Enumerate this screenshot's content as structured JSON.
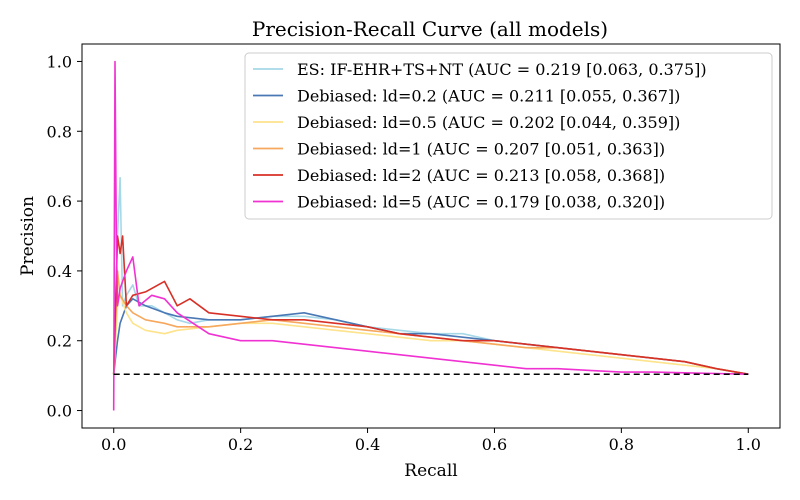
{
  "chart_data": {
    "type": "line",
    "title": "Precision-Recall Curve (all models)",
    "xlabel": "Recall",
    "ylabel": "Precision",
    "xlim": [
      -0.05,
      1.05
    ],
    "ylim": [
      -0.05,
      1.05
    ],
    "xticks": [
      "0.0",
      "0.2",
      "0.4",
      "0.6",
      "0.8",
      "1.0"
    ],
    "yticks": [
      "0.0",
      "0.2",
      "0.4",
      "0.6",
      "0.8",
      "1.0"
    ],
    "grid": false,
    "legend_position": "top-right",
    "baseline": {
      "y": 0.104,
      "style": "dashed",
      "color": "#000000"
    },
    "series": [
      {
        "name": "ES: IF-EHR+TS+NT (AUC = 0.219 [0.063, 0.375])",
        "color": "#a6d8e8",
        "x": [
          0.0,
          0.006,
          0.01,
          0.014,
          0.02,
          0.03,
          0.04,
          0.06,
          0.08,
          0.1,
          0.12,
          0.15,
          0.2,
          0.25,
          0.3,
          0.35,
          0.4,
          0.45,
          0.5,
          0.55,
          0.6,
          0.65,
          0.7,
          0.75,
          0.8,
          0.85,
          0.9,
          0.95,
          1.0
        ],
        "y": [
          0.104,
          0.5,
          0.667,
          0.3,
          0.33,
          0.36,
          0.3,
          0.3,
          0.28,
          0.26,
          0.25,
          0.26,
          0.26,
          0.27,
          0.27,
          0.26,
          0.24,
          0.23,
          0.22,
          0.22,
          0.2,
          0.19,
          0.18,
          0.17,
          0.16,
          0.15,
          0.14,
          0.12,
          0.104
        ]
      },
      {
        "name": "Debiased: ld=0.2 (AUC = 0.211 [0.055, 0.367])",
        "color": "#4a78b5",
        "x": [
          0.0,
          0.006,
          0.01,
          0.02,
          0.03,
          0.05,
          0.08,
          0.1,
          0.15,
          0.2,
          0.25,
          0.3,
          0.35,
          0.4,
          0.45,
          0.5,
          0.55,
          0.6,
          0.65,
          0.7,
          0.75,
          0.8,
          0.85,
          0.9,
          0.95,
          1.0
        ],
        "y": [
          0.104,
          0.2,
          0.25,
          0.3,
          0.32,
          0.3,
          0.28,
          0.27,
          0.26,
          0.26,
          0.27,
          0.28,
          0.26,
          0.24,
          0.22,
          0.22,
          0.21,
          0.2,
          0.19,
          0.18,
          0.17,
          0.16,
          0.15,
          0.14,
          0.12,
          0.104
        ]
      },
      {
        "name": "Debiased: ld=0.5 (AUC = 0.202 [0.044, 0.359])",
        "color": "#fde38b",
        "x": [
          0.0,
          0.006,
          0.01,
          0.02,
          0.03,
          0.05,
          0.08,
          0.1,
          0.15,
          0.2,
          0.25,
          0.3,
          0.35,
          0.4,
          0.45,
          0.5,
          0.55,
          0.6,
          0.65,
          0.7,
          0.75,
          0.8,
          0.85,
          0.9,
          0.95,
          1.0
        ],
        "y": [
          0.104,
          0.3,
          0.33,
          0.28,
          0.25,
          0.23,
          0.22,
          0.23,
          0.24,
          0.25,
          0.25,
          0.24,
          0.23,
          0.22,
          0.21,
          0.2,
          0.2,
          0.19,
          0.18,
          0.17,
          0.16,
          0.15,
          0.14,
          0.13,
          0.12,
          0.104
        ]
      },
      {
        "name": "Debiased: ld=1 (AUC = 0.207 [0.051, 0.363])",
        "color": "#f6a85e",
        "x": [
          0.0,
          0.006,
          0.01,
          0.02,
          0.03,
          0.05,
          0.08,
          0.1,
          0.15,
          0.2,
          0.25,
          0.3,
          0.35,
          0.4,
          0.45,
          0.5,
          0.55,
          0.6,
          0.65,
          0.7,
          0.75,
          0.8,
          0.85,
          0.9,
          0.95,
          1.0
        ],
        "y": [
          0.104,
          0.4,
          0.33,
          0.3,
          0.28,
          0.26,
          0.25,
          0.24,
          0.24,
          0.25,
          0.26,
          0.25,
          0.24,
          0.23,
          0.22,
          0.21,
          0.2,
          0.19,
          0.18,
          0.18,
          0.17,
          0.16,
          0.15,
          0.14,
          0.12,
          0.104
        ]
      },
      {
        "name": "Debiased: ld=2 (AUC = 0.213 [0.058, 0.368])",
        "color": "#d73027",
        "x": [
          0.0,
          0.006,
          0.01,
          0.014,
          0.02,
          0.03,
          0.05,
          0.07,
          0.08,
          0.1,
          0.12,
          0.15,
          0.2,
          0.25,
          0.3,
          0.35,
          0.4,
          0.45,
          0.5,
          0.55,
          0.6,
          0.65,
          0.7,
          0.75,
          0.8,
          0.85,
          0.9,
          0.95,
          1.0
        ],
        "y": [
          0.104,
          0.5,
          0.45,
          0.5,
          0.3,
          0.33,
          0.34,
          0.36,
          0.37,
          0.3,
          0.32,
          0.28,
          0.27,
          0.26,
          0.26,
          0.25,
          0.24,
          0.22,
          0.21,
          0.2,
          0.2,
          0.19,
          0.18,
          0.17,
          0.16,
          0.15,
          0.14,
          0.12,
          0.104
        ]
      },
      {
        "name": "Debiased: ld=5 (AUC = 0.179 [0.038, 0.320])",
        "color": "#f032d2",
        "x": [
          0.0,
          0.002,
          0.004,
          0.006,
          0.01,
          0.02,
          0.03,
          0.04,
          0.06,
          0.08,
          0.1,
          0.15,
          0.2,
          0.25,
          0.3,
          0.35,
          0.4,
          0.45,
          0.5,
          0.55,
          0.6,
          0.65,
          0.7,
          0.75,
          0.8,
          0.85,
          0.9,
          0.95,
          1.0
        ],
        "y": [
          0.0,
          1.0,
          0.5,
          0.3,
          0.35,
          0.4,
          0.44,
          0.3,
          0.33,
          0.32,
          0.28,
          0.22,
          0.2,
          0.2,
          0.19,
          0.18,
          0.17,
          0.16,
          0.15,
          0.14,
          0.13,
          0.12,
          0.12,
          0.115,
          0.11,
          0.11,
          0.108,
          0.106,
          0.104
        ]
      }
    ]
  }
}
